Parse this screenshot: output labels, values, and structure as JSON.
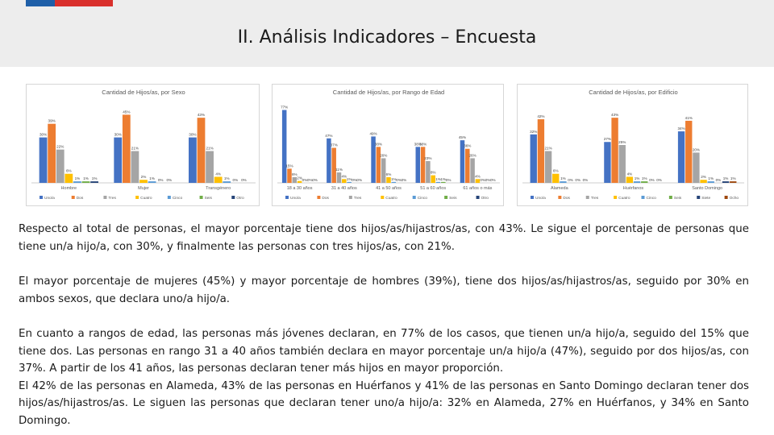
{
  "header": {
    "title": "II. Análisis Indicadores – Encuesta"
  },
  "colors": {
    "header_bg": "#ededed",
    "flag_blue": "#1f5fa8",
    "flag_red": "#d9302c",
    "series": [
      "#4472c4",
      "#ed7d31",
      "#a5a5a5",
      "#ffc000",
      "#5b9bd5",
      "#70ad47",
      "#264478",
      "#9e480e"
    ]
  },
  "chart_data": [
    {
      "type": "bar",
      "title": "Cantidad de Hijos/as, por Sexo",
      "categories": [
        "Hombre",
        "Mujer",
        "Transgénero"
      ],
      "series": [
        {
          "name": "Uno/a",
          "values": [
            30,
            30,
            30
          ],
          "labels": [
            "30%",
            "30%",
            "30%"
          ]
        },
        {
          "name": "Dos",
          "values": [
            39,
            45,
            43
          ],
          "labels": [
            "39%",
            "45%",
            "43%"
          ]
        },
        {
          "name": "Tres",
          "values": [
            22,
            21,
            21
          ],
          "labels": [
            "22%",
            "21%",
            "21%"
          ]
        },
        {
          "name": "Cuatro",
          "values": [
            6,
            2,
            4
          ],
          "labels": [
            "6%",
            "2%",
            "4%"
          ]
        },
        {
          "name": "Cinco",
          "values": [
            1,
            1,
            1
          ],
          "labels": [
            "1%",
            "1%",
            "1%"
          ]
        },
        {
          "name": "Seis",
          "values": [
            1,
            0,
            0
          ],
          "labels": [
            "1%",
            "0%",
            "0%"
          ]
        },
        {
          "name": "Otro",
          "values": [
            1,
            0,
            0
          ],
          "labels": [
            "1%",
            "0%",
            "0%"
          ]
        }
      ],
      "ylim": [
        0,
        50
      ],
      "legend": "bottom"
    },
    {
      "type": "bar",
      "title": "Cantidad de Hijos/as, por Rango de Edad",
      "categories": [
        "18 a 30 años",
        "31 a 40 años",
        "41 a 50 años",
        "51 a 60 años",
        "61 años o más"
      ],
      "series": [
        {
          "name": "Uno/a",
          "values": [
            77,
            47,
            49,
            38,
            45
          ],
          "labels": [
            "77%",
            "47%",
            "49%",
            "38%",
            "45%"
          ]
        },
        {
          "name": "Dos",
          "values": [
            15,
            37,
            38,
            38,
            36
          ],
          "labels": [
            "15%",
            "37%",
            "38%",
            "38%",
            "36%"
          ]
        },
        {
          "name": "Tres",
          "values": [
            6,
            11,
            26,
            23,
            26
          ],
          "labels": [
            "6%",
            "11%",
            "26%",
            "23%",
            "26%"
          ]
        },
        {
          "name": "Cuatro",
          "values": [
            2,
            4,
            6,
            8,
            4
          ],
          "labels": [
            "2%",
            "4%",
            "6%",
            "8%",
            "4%"
          ]
        },
        {
          "name": "Cinco",
          "values": [
            0,
            1,
            1,
            1,
            0
          ],
          "labels": [
            "0%",
            "1%",
            "1%",
            "1%",
            "0%"
          ]
        },
        {
          "name": "Seis",
          "values": [
            0,
            0,
            0,
            1,
            0
          ],
          "labels": [
            "0%",
            "0%",
            "0%",
            "1%",
            "0%"
          ]
        },
        {
          "name": "Otro",
          "values": [
            0,
            0,
            0,
            0,
            0
          ],
          "labels": [
            "0%",
            "0%",
            "0%",
            "0%",
            "0%"
          ]
        }
      ],
      "ylim": [
        0,
        80
      ],
      "legend": "bottom"
    },
    {
      "type": "bar",
      "title": "Cantidad de Hijos/as, por Edificio",
      "categories": [
        "Alameda",
        "Huérfanos",
        "Santo Domingo"
      ],
      "series": [
        {
          "name": "Uno/a",
          "values": [
            32,
            27,
            34
          ],
          "labels": [
            "32%",
            "27%",
            "34%"
          ]
        },
        {
          "name": "Dos",
          "values": [
            42,
            43,
            41
          ],
          "labels": [
            "42%",
            "43%",
            "41%"
          ]
        },
        {
          "name": "Tres",
          "values": [
            21,
            25,
            20
          ],
          "labels": [
            "21%",
            "25%",
            "20%"
          ]
        },
        {
          "name": "Cuatro",
          "values": [
            6,
            4,
            2
          ],
          "labels": [
            "6%",
            "4%",
            "2%"
          ]
        },
        {
          "name": "Cinco",
          "values": [
            1,
            1,
            1
          ],
          "labels": [
            "1%",
            "1%",
            "1%"
          ]
        },
        {
          "name": "Seis",
          "values": [
            0,
            1,
            0
          ],
          "labels": [
            "0%",
            "1%",
            "0%"
          ]
        },
        {
          "name": "Siete",
          "values": [
            0,
            0,
            1
          ],
          "labels": [
            "0%",
            "0%",
            "1%"
          ]
        },
        {
          "name": "Ocho",
          "values": [
            0,
            0,
            1
          ],
          "labels": [
            "0%",
            "0%",
            "1%"
          ]
        }
      ],
      "ylim": [
        0,
        50
      ],
      "legend": "bottom"
    }
  ],
  "body": {
    "p1": "Respecto al total de personas, el mayor porcentaje tiene dos hijos/as/hijastros/as, con 43%. Le sigue el porcentaje de personas que tiene un/a hijo/a, con 30%, y finalmente las personas con tres hijos/as, con 21%.",
    "p2": "El mayor porcentaje de mujeres (45%) y mayor porcentaje de hombres (39%), tiene dos hijos/as/hijastros/as, seguido por 30% en ambos sexos, que declara uno/a hijo/a.",
    "p3a": "En cuanto a rangos de edad, las personas más jóvenes declaran, en 77% de los casos, que tienen un/a hijo/a, seguido del 15% que tiene dos. Las personas en rango 31 a 40 años también declara en mayor porcentaje un/a hijo/a (47%), seguido por dos hijos/as, con 37%. A partir de los 41 años, las personas declaran tener más hijos en mayor proporción.",
    "p3b": "El 42% de las personas en Alameda, 43% de las personas en Huérfanos y 41% de las personas en Santo Domingo declaran tener dos hijos/as/hijastros/as. Le siguen las personas que declaran tener uno/a hijo/a: 32% en Alameda, 27% en Huérfanos, y 34% en Santo Domingo."
  }
}
